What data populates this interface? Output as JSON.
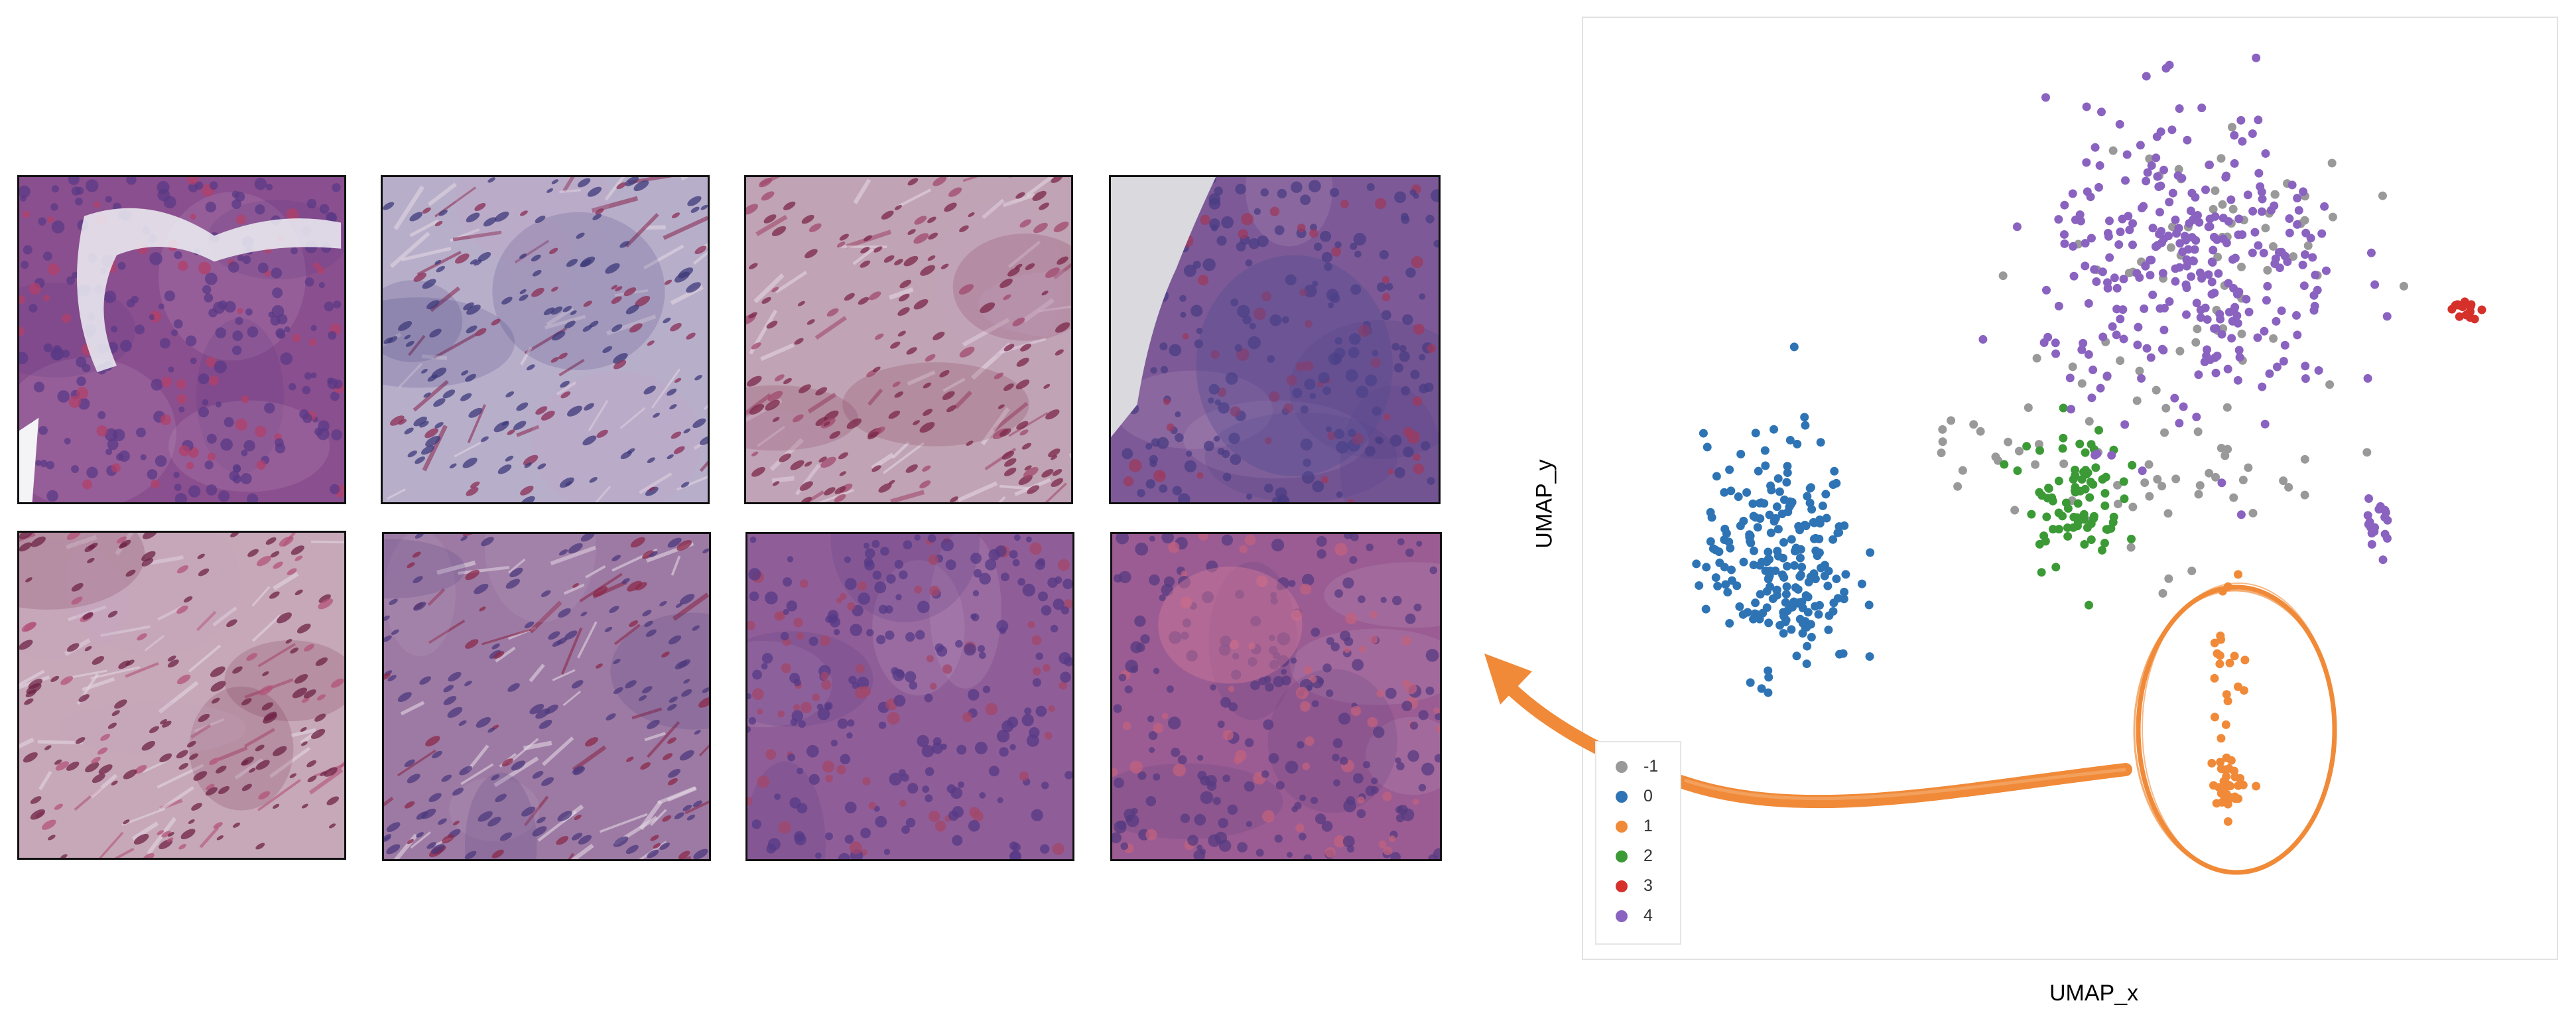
{
  "tile_gallery": {
    "tiles": [
      {
        "texture": "tumor-nest-with-vessel",
        "base": "#8a4f8e",
        "cell": "#5a3a86",
        "accent": "#b1406a"
      },
      {
        "texture": "stroma-lymphocytes",
        "base": "#b7aeca",
        "cell": "#3d3a7a",
        "accent": "#8b2e55"
      },
      {
        "texture": "fibrous-stroma",
        "base": "#c0a3b4",
        "cell": "#7b2748",
        "accent": "#a24a6e"
      },
      {
        "texture": "tumor-island-edge",
        "base": "#7d5a97",
        "cell": "#4a3c83",
        "accent": "#9c3a5e"
      },
      {
        "texture": "spindle-stroma",
        "base": "#c6a8b8",
        "cell": "#6e2345",
        "accent": "#b3537a"
      },
      {
        "texture": "mixed-tumor-stroma",
        "base": "#9c7aa4",
        "cell": "#4c3a7c",
        "accent": "#8b2a4a"
      },
      {
        "texture": "dense-tumor",
        "base": "#8f5e98",
        "cell": "#553a86",
        "accent": "#a34768"
      },
      {
        "texture": "tumor-necrosis",
        "base": "#9a5c93",
        "cell": "#563b80",
        "accent": "#c0627e"
      }
    ]
  },
  "annotation": {
    "arrow_color": "#f08a38",
    "circle_color": "#f08a38",
    "points_to": "tile-gallery",
    "highlights_cluster": "1"
  },
  "chart_data": {
    "type": "scatter",
    "xlabel": "UMAP_x",
    "ylabel": "UMAP_y",
    "xlim": [
      0,
      100
    ],
    "ylim": [
      0,
      100
    ],
    "grid": false,
    "legend_position": "bottom-left",
    "series": [
      {
        "name": "-1",
        "color": "#999999",
        "clusters": [
          {
            "cx": 59,
            "cy": 53,
            "sx": 11,
            "sy": 8,
            "n": 50
          },
          {
            "cx": 66,
            "cy": 77,
            "sx": 10,
            "sy": 12,
            "n": 60
          },
          {
            "cx": 37,
            "cy": 55,
            "sx": 5,
            "sy": 3,
            "n": 12
          }
        ]
      },
      {
        "name": "0",
        "color": "#2e74b5",
        "clusters": [
          {
            "cx": 18,
            "cy": 42,
            "sx": 5.5,
            "sy": 9,
            "n": 230
          }
        ]
      },
      {
        "name": "1",
        "color": "#f08a38",
        "clusters": [
          {
            "cx": 67.5,
            "cy": 30,
            "sx": 1.5,
            "sy": 8,
            "n": 22
          },
          {
            "cx": 68,
            "cy": 16,
            "sx": 1.4,
            "sy": 1.8,
            "n": 32
          }
        ]
      },
      {
        "name": "2",
        "color": "#3b9a35",
        "clusters": [
          {
            "cx": 50.5,
            "cy": 49,
            "sx": 3.5,
            "sy": 5.5,
            "n": 85
          }
        ]
      },
      {
        "name": "3",
        "color": "#d6302b",
        "clusters": [
          {
            "cx": 93.5,
            "cy": 70.5,
            "sx": 1.2,
            "sy": 0.8,
            "n": 16
          }
        ]
      },
      {
        "name": "4",
        "color": "#8a62c0",
        "clusters": [
          {
            "cx": 64,
            "cy": 75,
            "sx": 11,
            "sy": 12,
            "n": 300
          },
          {
            "cx": 84,
            "cy": 45,
            "sx": 1.5,
            "sy": 3,
            "n": 18
          }
        ]
      }
    ]
  }
}
